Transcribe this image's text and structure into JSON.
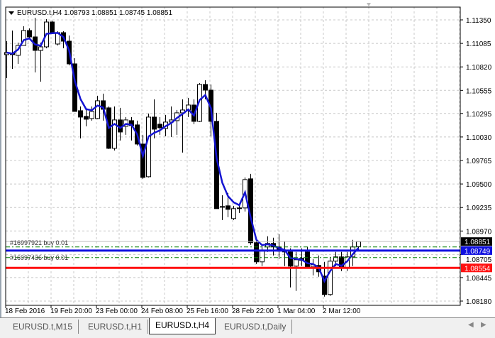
{
  "header": {
    "symbol": "EURUSD.t,H4",
    "open": "1.08793",
    "high": "1.08851",
    "low": "1.08745",
    "close": "1.08851"
  },
  "price_axis": {
    "ticks": [
      "1.11350",
      "1.11085",
      "1.10820",
      "1.10555",
      "1.10295",
      "1.10030",
      "1.09765",
      "1.09500",
      "1.09235",
      "1.08970",
      "1.08705",
      "1.08445",
      "1.08180"
    ],
    "tick_values": [
      1.1135,
      1.11085,
      1.1082,
      1.10555,
      1.10295,
      1.1003,
      1.09765,
      1.095,
      1.09235,
      1.0897,
      1.08705,
      1.08445,
      1.0818
    ]
  },
  "time_axis": [
    "18 Feb 2016",
    "19 Feb 20:00",
    "23 Feb 00:00",
    "24 Feb 08:00",
    "25 Feb 16:00",
    "28 Feb 22:00",
    "1 Mar 04:00",
    "2 Mar 12:00"
  ],
  "levels": {
    "current": {
      "price": 1.08851,
      "label": "1.08851",
      "color": "#000000"
    },
    "blue": {
      "price": 1.08749,
      "label": "1.08749",
      "color": "#1010e0"
    },
    "red": {
      "price": 1.08554,
      "label": "1.08554",
      "color": "#ff1010"
    },
    "orders": [
      {
        "label": "#16997921 buy 0.01",
        "price": 1.0879
      },
      {
        "label": "#16997436 buy 0.01",
        "price": 1.0867
      }
    ],
    "order_color": "#008000"
  },
  "ma_color": "#1414d2",
  "tabs": [
    {
      "label": "EURUSD.t,M15"
    },
    {
      "label": "EURUSD.t,H1"
    },
    {
      "label": "EURUSD.t,H4",
      "active": true
    },
    {
      "label": "EURUSD.t,Daily"
    }
  ],
  "chart_data": {
    "type": "candlestick",
    "ylim": [
      1.0812,
      1.1152
    ],
    "grid": true,
    "ohlc": [
      [
        1.10958,
        1.1111,
        1.10694,
        1.10982
      ],
      [
        1.10974,
        1.1123,
        1.10798,
        1.10958
      ],
      [
        1.1095,
        1.11094,
        1.10854,
        1.11062
      ],
      [
        1.11062,
        1.11278,
        1.11062,
        1.1123
      ],
      [
        1.1123,
        1.11254,
        1.11134,
        1.11158
      ],
      [
        1.11158,
        1.11374,
        1.10758,
        1.11006
      ],
      [
        1.11006,
        1.11094,
        1.10654,
        1.11046
      ],
      [
        1.11046,
        1.11358,
        1.1103,
        1.11326
      ],
      [
        1.11326,
        1.11342,
        1.1119,
        1.11206
      ],
      [
        1.11078,
        1.11222,
        1.11062,
        1.11206
      ],
      [
        1.11206,
        1.11222,
        1.1103,
        1.1111
      ],
      [
        1.1111,
        1.11174,
        1.10838,
        1.10854
      ],
      [
        1.10854,
        1.10918,
        1.10318,
        1.10318
      ],
      [
        1.10326,
        1.10374,
        1.10014,
        1.10254
      ],
      [
        1.10262,
        1.10334,
        1.1015,
        1.1023
      ],
      [
        1.10238,
        1.10374,
        1.10214,
        1.10318
      ],
      [
        1.10238,
        1.10494,
        1.1023,
        1.10438
      ],
      [
        1.10438,
        1.10518,
        1.10214,
        1.10342
      ],
      [
        1.10358,
        1.10374,
        1.09894,
        1.09902
      ],
      [
        1.09902,
        1.10374,
        1.09878,
        1.10222
      ],
      [
        1.10222,
        1.10358,
        1.0999,
        1.10086
      ],
      [
        1.1015,
        1.10254,
        1.10054,
        1.10222
      ],
      [
        1.10214,
        1.10254,
        1.0999,
        1.10158
      ],
      [
        1.10166,
        1.10214,
        1.09934,
        1.0995
      ],
      [
        1.0995,
        1.10054,
        1.09558,
        1.09574
      ],
      [
        1.09582,
        1.10294,
        1.09574,
        1.10254
      ],
      [
        1.10254,
        1.10454,
        1.10014,
        1.10118
      ],
      [
        1.10174,
        1.10254,
        1.10054,
        1.10134
      ],
      [
        1.10126,
        1.10278,
        1.10038,
        1.10198
      ],
      [
        1.10198,
        1.10374,
        1.1003,
        1.10222
      ],
      [
        1.10214,
        1.10334,
        1.10054,
        1.10302
      ],
      [
        1.10302,
        1.10454,
        1.09854,
        1.10334
      ],
      [
        1.10334,
        1.1047,
        1.10254,
        1.1039
      ],
      [
        1.1039,
        1.10454,
        1.10174,
        1.10206
      ],
      [
        1.10206,
        1.10638,
        1.10198,
        1.10622
      ],
      [
        1.10622,
        1.1067,
        1.10454,
        1.10558
      ],
      [
        1.10558,
        1.10622,
        1.10038,
        1.10206
      ],
      [
        1.10206,
        1.10302,
        1.09238,
        1.09222
      ],
      [
        1.09246,
        1.09374,
        1.09094,
        1.09238
      ],
      [
        1.09254,
        1.09398,
        1.09126,
        1.09214
      ],
      [
        1.0911,
        1.09254,
        1.09094,
        1.09222
      ],
      [
        1.0923,
        1.0927,
        1.09174,
        1.0923
      ],
      [
        1.0923,
        1.09574,
        1.0919,
        1.0955
      ],
      [
        1.09558,
        1.09614,
        1.08814,
        1.08838
      ],
      [
        1.08838,
        1.0887,
        1.08598,
        1.08622
      ],
      [
        1.08622,
        1.08814,
        1.08574,
        1.0875
      ],
      [
        1.0879,
        1.0891,
        1.08734,
        1.0883
      ],
      [
        1.0883,
        1.08894,
        1.08694,
        1.0879
      ],
      [
        1.0879,
        1.08934,
        1.08654,
        1.0875
      ],
      [
        1.0875,
        1.08854,
        1.08574,
        1.08734
      ],
      [
        1.08734,
        1.08774,
        1.08334,
        1.08574
      ],
      [
        1.08574,
        1.08734,
        1.08294,
        1.08646
      ],
      [
        1.08662,
        1.08774,
        1.08574,
        1.08638
      ],
      [
        1.08734,
        1.0879,
        1.0855,
        1.08566
      ],
      [
        1.08566,
        1.08654,
        1.0847,
        1.0859
      ],
      [
        1.08582,
        1.08694,
        1.08454,
        1.0851
      ],
      [
        1.08462,
        1.08622,
        1.0823,
        1.08254
      ],
      [
        1.08254,
        1.08678,
        1.08238,
        1.0863
      ],
      [
        1.0863,
        1.08734,
        1.08574,
        1.08678
      ],
      [
        1.08678,
        1.08734,
        1.08518,
        1.08558
      ],
      [
        1.08558,
        1.08734,
        1.08518,
        1.08678
      ],
      [
        1.08678,
        1.0887,
        1.08574,
        1.0879
      ],
      [
        1.08793,
        1.08851,
        1.08745,
        1.08851
      ]
    ]
  }
}
